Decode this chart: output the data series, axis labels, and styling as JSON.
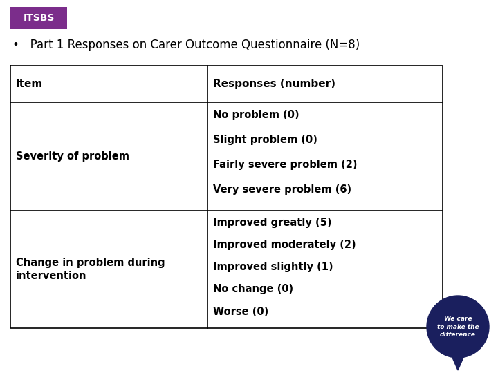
{
  "title_badge": "ITSBS",
  "title_badge_bg": "#7B2D8B",
  "title_badge_fg": "#FFFFFF",
  "bullet_text": "Part 1 Responses on Carer Outcome Questionnaire (N=8)",
  "table_headers": [
    "Item",
    "Responses (number)"
  ],
  "row1_col1": "Severity of problem",
  "row1_col2_lines": [
    "No problem (0)",
    "Slight problem (0)",
    "Fairly severe problem (2)",
    "Very severe problem (6)"
  ],
  "row2_col1_lines": [
    "Change in problem during",
    "intervention"
  ],
  "row2_col2_lines": [
    "Improved greatly (5)",
    "Improved moderately (2)",
    "Improved slightly (1)",
    "No change (0)",
    "Worse (0)"
  ],
  "badge_logo_text": "We care\nto make the\ndifference",
  "badge_logo_bg": "#1A1F5E",
  "badge_logo_fg": "#FFFFFF",
  "bg_color": "#FFFFFF",
  "table_border_color": "#000000",
  "header_font_size": 11,
  "body_font_size": 10.5,
  "bullet_font_size": 12,
  "badge_font_size": 6.5,
  "title_font_size": 10
}
